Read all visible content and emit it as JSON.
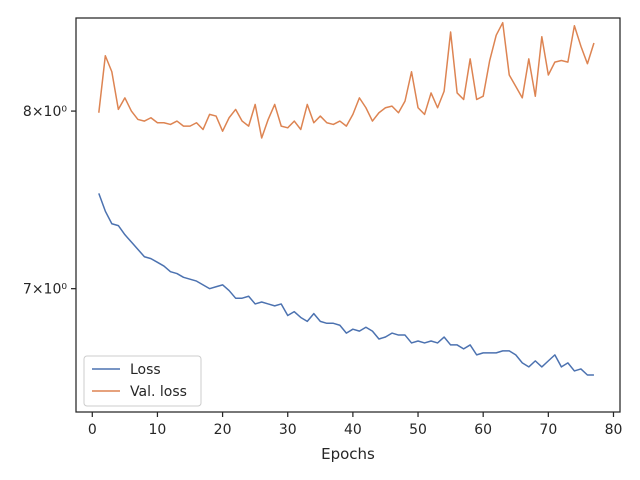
{
  "chart_data": {
    "type": "line",
    "xlabel": "Epochs",
    "ylabel": "",
    "xlim": [
      -2.5,
      81
    ],
    "ylim": [
      6.38,
      8.58
    ],
    "yscale": "log",
    "xticks": [
      0,
      10,
      20,
      30,
      40,
      50,
      60,
      70,
      80
    ],
    "yticks": [
      {
        "value": 7,
        "label": "7×10⁰"
      },
      {
        "value": 8,
        "label": "8×10⁰"
      }
    ],
    "grid": false,
    "legend_position": "lower-left",
    "x": [
      1,
      2,
      3,
      4,
      5,
      6,
      7,
      8,
      9,
      10,
      11,
      12,
      13,
      14,
      15,
      16,
      17,
      18,
      19,
      20,
      21,
      22,
      23,
      24,
      25,
      26,
      27,
      28,
      29,
      30,
      31,
      32,
      33,
      34,
      35,
      36,
      37,
      38,
      39,
      40,
      41,
      42,
      43,
      44,
      45,
      46,
      47,
      48,
      49,
      50,
      51,
      52,
      53,
      54,
      55,
      56,
      57,
      58,
      59,
      60,
      61,
      62,
      63,
      64,
      65,
      66,
      67,
      68,
      69,
      70,
      71,
      72,
      73,
      74,
      75,
      76,
      77
    ],
    "series": [
      {
        "name": "Loss",
        "color": "#4c72b0",
        "values": [
          7.52,
          7.42,
          7.35,
          7.34,
          7.29,
          7.25,
          7.21,
          7.17,
          7.16,
          7.14,
          7.12,
          7.09,
          7.08,
          7.06,
          7.05,
          7.04,
          7.02,
          7.0,
          7.01,
          7.02,
          6.99,
          6.95,
          6.95,
          6.96,
          6.92,
          6.93,
          6.92,
          6.91,
          6.92,
          6.86,
          6.88,
          6.85,
          6.83,
          6.87,
          6.83,
          6.82,
          6.82,
          6.81,
          6.77,
          6.79,
          6.78,
          6.8,
          6.78,
          6.74,
          6.75,
          6.77,
          6.76,
          6.76,
          6.72,
          6.73,
          6.72,
          6.73,
          6.72,
          6.75,
          6.71,
          6.71,
          6.69,
          6.71,
          6.66,
          6.67,
          6.67,
          6.67,
          6.68,
          6.68,
          6.66,
          6.62,
          6.6,
          6.63,
          6.6,
          6.63,
          6.66,
          6.6,
          6.62,
          6.58,
          6.59,
          6.56,
          6.56
        ]
      },
      {
        "name": "Val. loss",
        "color": "#dd8452",
        "values": [
          7.99,
          8.34,
          8.24,
          8.01,
          8.08,
          8.0,
          7.95,
          7.94,
          7.96,
          7.93,
          7.93,
          7.92,
          7.94,
          7.91,
          7.91,
          7.93,
          7.89,
          7.98,
          7.97,
          7.88,
          7.96,
          8.01,
          7.94,
          7.91,
          8.04,
          7.84,
          7.95,
          8.04,
          7.91,
          7.9,
          7.94,
          7.89,
          8.04,
          7.93,
          7.97,
          7.93,
          7.92,
          7.94,
          7.91,
          7.98,
          8.08,
          8.02,
          7.94,
          7.99,
          8.02,
          8.03,
          7.99,
          8.06,
          8.24,
          8.02,
          7.98,
          8.11,
          8.02,
          8.12,
          8.49,
          8.11,
          8.07,
          8.32,
          8.07,
          8.09,
          8.31,
          8.47,
          8.55,
          8.22,
          8.15,
          8.08,
          8.32,
          8.09,
          8.46,
          8.22,
          8.3,
          8.31,
          8.3,
          8.53,
          8.4,
          8.29,
          8.42
        ]
      }
    ]
  }
}
